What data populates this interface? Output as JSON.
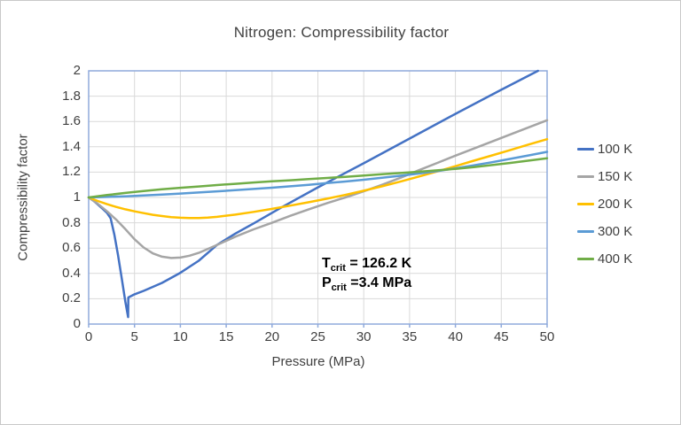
{
  "window": {
    "background": "#ffffff",
    "frame_border_color": "#c9c9c9"
  },
  "chart_data": {
    "type": "line",
    "title": "Nitrogen: Compressibility factor",
    "xlabel": "Pressure (MPa)",
    "ylabel": "Compressibility factor",
    "xlim": [
      0,
      50
    ],
    "ylim": [
      0,
      2
    ],
    "grid": true,
    "legend_position": "right",
    "axis_color": "#8faadc",
    "gridline_color": "#d9d9d9",
    "xticks": [
      0,
      5,
      10,
      15,
      20,
      25,
      30,
      35,
      40,
      45,
      50
    ],
    "xtick_labels": [
      "0",
      "5",
      "10",
      "15",
      "20",
      "25",
      "30",
      "35",
      "40",
      "45",
      "50"
    ],
    "yticks": [
      0,
      0.2,
      0.4,
      0.6,
      0.8,
      1,
      1.2,
      1.4,
      1.6,
      1.8,
      2
    ],
    "ytick_labels": [
      "0",
      "0.2",
      "0.4",
      "0.6",
      "0.8",
      "1",
      "1.2",
      "1.4",
      "1.6",
      "1.8",
      "2"
    ],
    "series": [
      {
        "name": "100 K",
        "color": "#4472c4",
        "points": [
          [
            0,
            1.0
          ],
          [
            0.5,
            0.975
          ],
          [
            1,
            0.945
          ],
          [
            1.5,
            0.912
          ],
          [
            2,
            0.878
          ],
          [
            2.4,
            0.835
          ],
          [
            2.8,
            0.705
          ],
          [
            3.2,
            0.545
          ],
          [
            3.6,
            0.365
          ],
          [
            4.0,
            0.175
          ],
          [
            4.3,
            0.055
          ],
          [
            4.32,
            0.21
          ],
          [
            5,
            0.235
          ],
          [
            6,
            0.262
          ],
          [
            8,
            0.325
          ],
          [
            10,
            0.405
          ],
          [
            12,
            0.5
          ],
          [
            14,
            0.625
          ],
          [
            16,
            0.715
          ],
          [
            18,
            0.795
          ],
          [
            21,
            0.92
          ],
          [
            25,
            1.08
          ],
          [
            30,
            1.27
          ],
          [
            35,
            1.465
          ],
          [
            40,
            1.66
          ],
          [
            45,
            1.85
          ],
          [
            49,
            2.0
          ]
        ]
      },
      {
        "name": "150 K",
        "color": "#a5a5a5",
        "points": [
          [
            0,
            1.0
          ],
          [
            1,
            0.95
          ],
          [
            2,
            0.89
          ],
          [
            3,
            0.825
          ],
          [
            4,
            0.75
          ],
          [
            5,
            0.67
          ],
          [
            6,
            0.605
          ],
          [
            7,
            0.558
          ],
          [
            8,
            0.532
          ],
          [
            9,
            0.522
          ],
          [
            10,
            0.525
          ],
          [
            11,
            0.54
          ],
          [
            12,
            0.562
          ],
          [
            14,
            0.625
          ],
          [
            16,
            0.69
          ],
          [
            18,
            0.748
          ],
          [
            20,
            0.8
          ],
          [
            22,
            0.855
          ],
          [
            24,
            0.906
          ],
          [
            26,
            0.955
          ],
          [
            28,
            1.0
          ],
          [
            30,
            1.048
          ],
          [
            32,
            1.1
          ],
          [
            34,
            1.155
          ],
          [
            36,
            1.215
          ],
          [
            38,
            1.272
          ],
          [
            40,
            1.33
          ],
          [
            42,
            1.386
          ],
          [
            44,
            1.442
          ],
          [
            46,
            1.498
          ],
          [
            48,
            1.554
          ],
          [
            50,
            1.61
          ]
        ]
      },
      {
        "name": "200 K",
        "color": "#ffc000",
        "points": [
          [
            0,
            1.0
          ],
          [
            1,
            0.972
          ],
          [
            2,
            0.947
          ],
          [
            3,
            0.925
          ],
          [
            4,
            0.906
          ],
          [
            5,
            0.89
          ],
          [
            6,
            0.876
          ],
          [
            7,
            0.863
          ],
          [
            8,
            0.853
          ],
          [
            9,
            0.845
          ],
          [
            10,
            0.84
          ],
          [
            11,
            0.838
          ],
          [
            12,
            0.838
          ],
          [
            13,
            0.841
          ],
          [
            14,
            0.847
          ],
          [
            16,
            0.864
          ],
          [
            18,
            0.886
          ],
          [
            20,
            0.91
          ],
          [
            22,
            0.936
          ],
          [
            24,
            0.962
          ],
          [
            26,
            0.99
          ],
          [
            28,
            1.02
          ],
          [
            30,
            1.053
          ],
          [
            32,
            1.088
          ],
          [
            34,
            1.125
          ],
          [
            36,
            1.165
          ],
          [
            38,
            1.205
          ],
          [
            40,
            1.247
          ],
          [
            42,
            1.29
          ],
          [
            44,
            1.332
          ],
          [
            46,
            1.375
          ],
          [
            48,
            1.418
          ],
          [
            50,
            1.46
          ]
        ]
      },
      {
        "name": "300 K",
        "color": "#5b9bd5",
        "points": [
          [
            0,
            1.0
          ],
          [
            2,
            1.004
          ],
          [
            4,
            1.009
          ],
          [
            6,
            1.016
          ],
          [
            8,
            1.023
          ],
          [
            10,
            1.031
          ],
          [
            12,
            1.039
          ],
          [
            14,
            1.048
          ],
          [
            16,
            1.057
          ],
          [
            18,
            1.067
          ],
          [
            20,
            1.077
          ],
          [
            22,
            1.088
          ],
          [
            24,
            1.1
          ],
          [
            26,
            1.113
          ],
          [
            28,
            1.126
          ],
          [
            30,
            1.14
          ],
          [
            32,
            1.155
          ],
          [
            34,
            1.171
          ],
          [
            36,
            1.189
          ],
          [
            38,
            1.208
          ],
          [
            40,
            1.23
          ],
          [
            42,
            1.254
          ],
          [
            44,
            1.278
          ],
          [
            46,
            1.305
          ],
          [
            48,
            1.332
          ],
          [
            50,
            1.36
          ]
        ]
      },
      {
        "name": "400 K",
        "color": "#70ad47",
        "points": [
          [
            0,
            1.0
          ],
          [
            2,
            1.019
          ],
          [
            4,
            1.036
          ],
          [
            6,
            1.051
          ],
          [
            8,
            1.064
          ],
          [
            10,
            1.076
          ],
          [
            12,
            1.087
          ],
          [
            14,
            1.098
          ],
          [
            16,
            1.108
          ],
          [
            18,
            1.118
          ],
          [
            20,
            1.127
          ],
          [
            22,
            1.136
          ],
          [
            24,
            1.145
          ],
          [
            26,
            1.154
          ],
          [
            28,
            1.163
          ],
          [
            30,
            1.173
          ],
          [
            32,
            1.183
          ],
          [
            34,
            1.193
          ],
          [
            36,
            1.203
          ],
          [
            38,
            1.214
          ],
          [
            40,
            1.226
          ],
          [
            42,
            1.24
          ],
          [
            44,
            1.256
          ],
          [
            46,
            1.273
          ],
          [
            48,
            1.291
          ],
          [
            50,
            1.31
          ]
        ]
      }
    ],
    "annotation": {
      "line1": {
        "base": "T",
        "sub": "crit",
        "rest": " = 126.2 K"
      },
      "line2": {
        "base": "P",
        "sub": "crit",
        "rest": " =3.4 MPa"
      }
    }
  }
}
